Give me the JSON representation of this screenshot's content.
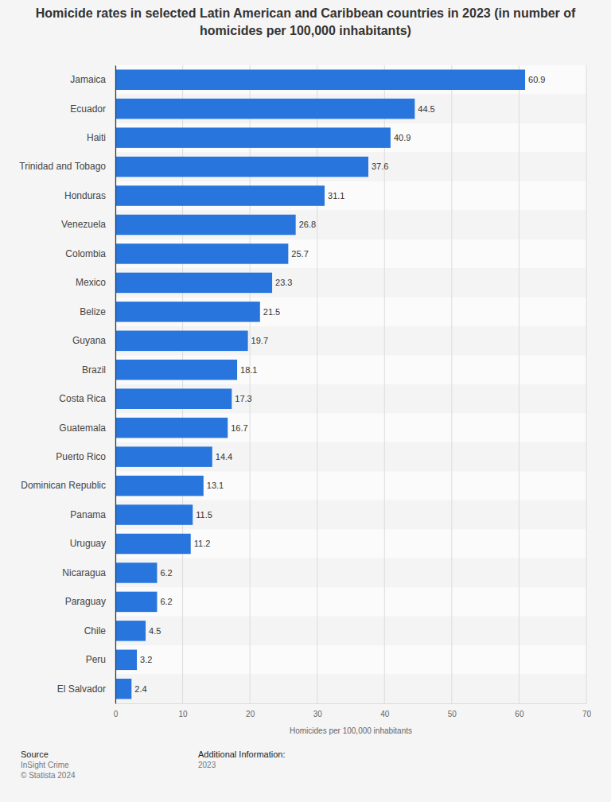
{
  "chart_data": {
    "type": "bar",
    "orientation": "horizontal",
    "title": "Homicide rates in selected Latin American and Caribbean countries in 2023 (in number of homicides per 100,000 inhabitants)",
    "x_label": "Homicides per 100,000 inhabitants",
    "categories": [
      "Jamaica",
      "Ecuador",
      "Haiti",
      "Trinidad and Tobago",
      "Honduras",
      "Venezuela",
      "Colombia",
      "Mexico",
      "Belize",
      "Guyana",
      "Brazil",
      "Costa Rica",
      "Guatemala",
      "Puerto Rico",
      "Dominican Republic",
      "Panama",
      "Uruguay",
      "Nicaragua",
      "Paraguay",
      "Chile",
      "Peru",
      "El Salvador"
    ],
    "values": [
      60.9,
      44.5,
      40.9,
      37.6,
      31.1,
      26.8,
      25.7,
      23.3,
      21.5,
      19.7,
      18.1,
      17.3,
      16.7,
      14.4,
      13.1,
      11.5,
      11.2,
      6.2,
      6.2,
      4.5,
      3.2,
      2.4
    ],
    "color": "#2876dd",
    "xlim": [
      0,
      70
    ],
    "xticks": [
      0,
      10,
      20,
      30,
      40,
      50,
      60,
      70
    ],
    "grid": true,
    "data_labels": true
  },
  "footer": {
    "source_label": "Source",
    "source": "InSight Crime",
    "copyright": "© Statista 2024",
    "info_label": "Additional Information:",
    "info": "2023"
  }
}
